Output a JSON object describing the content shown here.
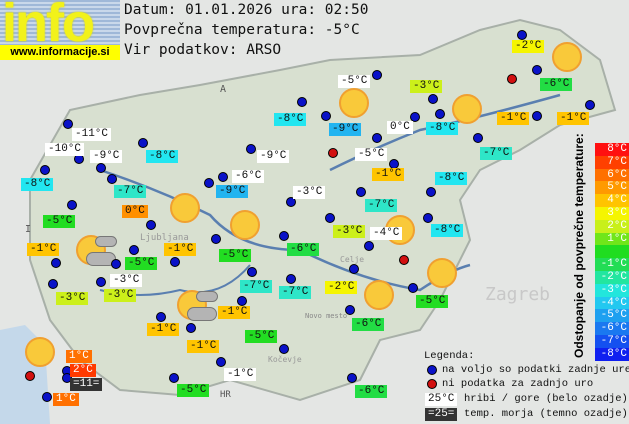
{
  "header": {
    "logo": "info",
    "logo_url": "www.informacije.si",
    "date_line": "Datum: 01.01.2026 ura: 02:50",
    "avg_line": "Povprečna temperatura: -5°C",
    "source_line": "Vir podatkov: ARSO"
  },
  "map_labels": [
    "A",
    "I",
    "HR",
    "Zagreb",
    "Ljubljana",
    "Novo mesto",
    "Kočevje",
    "Celje"
  ],
  "stations": [
    {
      "t": "-2°C",
      "bg": "#f5f500"
    },
    {
      "t": "-5°C",
      "bg": "#ffffff"
    },
    {
      "t": "-3°C",
      "bg": "#ccf01a"
    },
    {
      "t": "-6°C",
      "bg": "#22dd44"
    },
    {
      "t": "-8°C",
      "bg": "#22e6f0"
    },
    {
      "t": "-9°C",
      "bg": "#22b4f0"
    },
    {
      "t": "0°C",
      "bg": "#ffffff"
    },
    {
      "t": "-8°C",
      "bg": "#22e6f0"
    },
    {
      "t": "-1°C",
      "bg": "#ffc400"
    },
    {
      "t": "-1°C",
      "bg": "#ffc400"
    },
    {
      "t": "-11°C",
      "bg": "#ffffff"
    },
    {
      "t": "-10°C",
      "bg": "#ffffff"
    },
    {
      "t": "-9°C",
      "bg": "#ffffff"
    },
    {
      "t": "-8°C",
      "bg": "#22e6f0"
    },
    {
      "t": "-9°C",
      "bg": "#ffffff"
    },
    {
      "t": "-8°C",
      "bg": "#22e6f0"
    },
    {
      "t": "-7°C",
      "bg": "#2ee6c8"
    },
    {
      "t": "-6°C",
      "bg": "#ffffff"
    },
    {
      "t": "-9°C",
      "bg": "#22b4f0"
    },
    {
      "t": "-5°C",
      "bg": "#ffffff"
    },
    {
      "t": "-7°C",
      "bg": "#2ee6c8"
    },
    {
      "t": "-1°C",
      "bg": "#ffc400"
    },
    {
      "t": "-8°C",
      "bg": "#22e6f0"
    },
    {
      "t": "-3°C",
      "bg": "#ffffff"
    },
    {
      "t": "-7°C",
      "bg": "#2ee6c8"
    },
    {
      "t": "0°C",
      "bg": "#ff9000"
    },
    {
      "t": "-5°C",
      "bg": "#22dd22"
    },
    {
      "t": "-8°C",
      "bg": "#22e6f0"
    },
    {
      "t": "-3°C",
      "bg": "#ccf01a"
    },
    {
      "t": "-4°C",
      "bg": "#ffffff"
    },
    {
      "t": "-6°C",
      "bg": "#22dd44"
    },
    {
      "t": "-1°C",
      "bg": "#ffc400"
    },
    {
      "t": "-1°C",
      "bg": "#ffc400"
    },
    {
      "t": "-5°C",
      "bg": "#22dd22"
    },
    {
      "t": "-5°C",
      "bg": "#22dd22"
    },
    {
      "t": "-3°C",
      "bg": "#ffffff"
    },
    {
      "t": "-3°C",
      "bg": "#ccf01a"
    },
    {
      "t": "-3°C",
      "bg": "#ccf01a"
    },
    {
      "t": "-7°C",
      "bg": "#2ee6c8"
    },
    {
      "t": "-7°C",
      "bg": "#2ee6c8"
    },
    {
      "t": "-2°C",
      "bg": "#f5f500"
    },
    {
      "t": "-5°C",
      "bg": "#22dd22"
    },
    {
      "t": "-6°C",
      "bg": "#22dd44"
    },
    {
      "t": "-1°C",
      "bg": "#ffc400"
    },
    {
      "t": "-1°C",
      "bg": "#ffc400"
    },
    {
      "t": "-1°C",
      "bg": "#ffc400"
    },
    {
      "t": "-5°C",
      "bg": "#22dd22"
    },
    {
      "t": "-1°C",
      "bg": "#ffffff"
    },
    {
      "t": "-5°C",
      "bg": "#22dd22"
    },
    {
      "t": "-6°C",
      "bg": "#22dd44"
    },
    {
      "t": "1°C",
      "bg": "#ff7000"
    },
    {
      "t": "2°C",
      "bg": "#ff3a00"
    },
    {
      "t": "=11=",
      "bg": "#333333"
    },
    {
      "t": "1°C",
      "bg": "#ff7000"
    }
  ],
  "scale": {
    "title": "Odstopanje od povprečne temperature:",
    "items": [
      {
        "t": "8°C",
        "c": "#ff1010"
      },
      {
        "t": "7°C",
        "c": "#ff4000"
      },
      {
        "t": "6°C",
        "c": "#ff7000"
      },
      {
        "t": "5°C",
        "c": "#ff9a00"
      },
      {
        "t": "4°C",
        "c": "#ffc400"
      },
      {
        "t": "3°C",
        "c": "#f5f500"
      },
      {
        "t": "2°C",
        "c": "#c8f01a"
      },
      {
        "t": "1°C",
        "c": "#70e61a"
      },
      {
        "t": "",
        "c": "#20dd20"
      },
      {
        "t": "-1°C",
        "c": "#22dd55"
      },
      {
        "t": "-2°C",
        "c": "#22e6a0"
      },
      {
        "t": "-3°C",
        "c": "#22e6dc"
      },
      {
        "t": "-4°C",
        "c": "#22c8f0"
      },
      {
        "t": "-5°C",
        "c": "#1ea0f0"
      },
      {
        "t": "-6°C",
        "c": "#1a78f0"
      },
      {
        "t": "-7°C",
        "c": "#1450f0"
      },
      {
        "t": "-8°C",
        "c": "#1020f0"
      }
    ]
  },
  "legend": {
    "title": "Legenda:",
    "blue": "na voljo so podatki zadnje ure",
    "red": "ni podatka za zadnjo uro",
    "white_sample": "25°C",
    "white": "hribi / gore (belo ozadje)",
    "dark_sample": "=25=",
    "dark": "temp. morja (temno ozadje)"
  }
}
